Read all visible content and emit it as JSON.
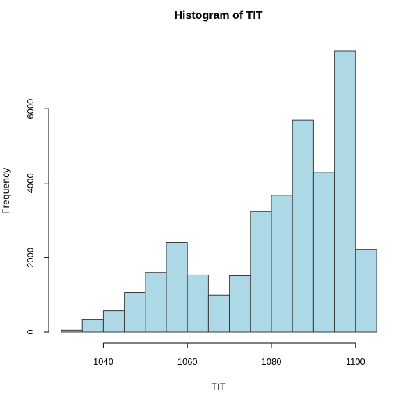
{
  "chart_data": {
    "type": "bar",
    "title": "Histogram of TIT",
    "xlabel": "TIT",
    "ylabel": "Frequency",
    "bins": [
      {
        "start": 1030,
        "end": 1035,
        "count": 50
      },
      {
        "start": 1035,
        "end": 1040,
        "count": 330
      },
      {
        "start": 1040,
        "end": 1045,
        "count": 570
      },
      {
        "start": 1045,
        "end": 1050,
        "count": 1060
      },
      {
        "start": 1050,
        "end": 1055,
        "count": 1600
      },
      {
        "start": 1055,
        "end": 1060,
        "count": 2410
      },
      {
        "start": 1060,
        "end": 1065,
        "count": 1530
      },
      {
        "start": 1065,
        "end": 1070,
        "count": 990
      },
      {
        "start": 1070,
        "end": 1075,
        "count": 1510
      },
      {
        "start": 1075,
        "end": 1080,
        "count": 3240
      },
      {
        "start": 1080,
        "end": 1085,
        "count": 3680
      },
      {
        "start": 1085,
        "end": 1090,
        "count": 5700
      },
      {
        "start": 1090,
        "end": 1095,
        "count": 4300
      },
      {
        "start": 1095,
        "end": 1100,
        "count": 7560
      },
      {
        "start": 1100,
        "end": 1105,
        "count": 2220
      }
    ],
    "xticks": [
      1040,
      1060,
      1080,
      1100
    ],
    "yticks": [
      0,
      2000,
      4000,
      6000
    ],
    "xlim": [
      1030,
      1105
    ],
    "ylim": [
      0,
      7560
    ],
    "grid": false,
    "colors": {
      "bar_fill": "#add8e6",
      "bar_stroke": "#3a3a3a",
      "axis": "#000000"
    }
  }
}
